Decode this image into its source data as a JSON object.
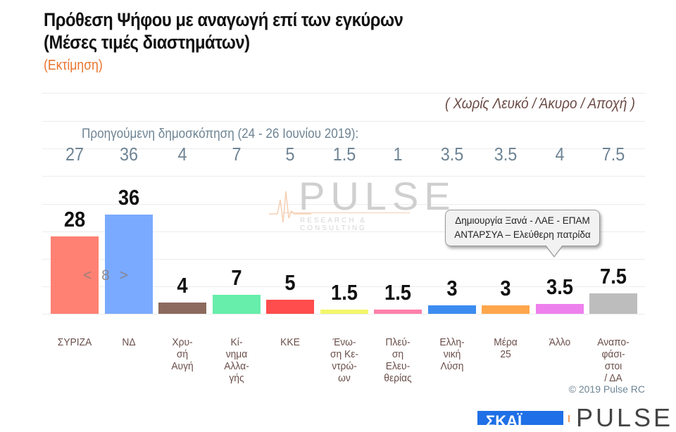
{
  "header": {
    "title_line1": "Πρόθεση Ψήφου με αναγωγή επί των εγκύρων",
    "title_line2": "(Μέσες τιμές διαστημάτων)",
    "subtitle": "(Εκτίμηση)"
  },
  "note": "( Χωρίς Λευκό / Άκυρο / Αποχή )",
  "previous": {
    "label": "Προηγούμενη δημοσκόπηση (24 - 26 Ιουνίου 2019):",
    "values": [
      "27",
      "36",
      "4",
      "7",
      "5",
      "1.5",
      "1",
      "3.5",
      "3.5",
      "4",
      "7.5"
    ]
  },
  "watermark": {
    "brand": "PULSE",
    "tagline": "RESEARCH & CONSULTING"
  },
  "callout": {
    "line1": "Δημιουργία Ξανά -  ΛΑΕ - ΕΠΑΜ",
    "line2": "ΑΝΤΑΡΣΥΑ – Ελεύθερη πατρίδα"
  },
  "pager": "< 8 >",
  "copyright": "© 2019 Pulse RC",
  "footer": {
    "logo1": "ΣΚΑΪ",
    "logo2": "PULSE"
  },
  "bars": [
    {
      "label": "ΣΥΡΙΖΑ",
      "value": "28",
      "color": "#ff8173"
    },
    {
      "label": "ΝΔ",
      "value": "36",
      "color": "#7aaaff"
    },
    {
      "label": "Χρυ-\nσή\nΑυγή",
      "value": "4",
      "color": "#8c6a5e"
    },
    {
      "label": "Κί-\nνημα\nΑλλα-\nγής",
      "value": "7",
      "color": "#66eeaa"
    },
    {
      "label": "ΚΚΕ",
      "value": "5",
      "color": "#ff4c4c"
    },
    {
      "label": "Ένω-\nση Κε-\nντρώ-\nων",
      "value": "1.5",
      "color": "#f2f76a"
    },
    {
      "label": "Πλεύ-\nση\nΕλευ-\nθερίας",
      "value": "1.5",
      "color": "#ff80aa"
    },
    {
      "label": "Ελλη-\nνική\nΛύση",
      "value": "3",
      "color": "#3c8cf0"
    },
    {
      "label": "Μέρα\n25",
      "value": "3",
      "color": "#ffa64c"
    },
    {
      "label": "Άλλο",
      "value": "3.5",
      "color": "#ee80ee"
    },
    {
      "label": "Αναπο-\nφάσι-\nστοι\n/ ΔΑ",
      "value": "7.5",
      "color": "#bdbdbd"
    }
  ],
  "chart_data": {
    "type": "bar",
    "title": "Πρόθεση Ψήφου με αναγωγή επί των εγκύρων (Μέσες τιμές διαστημάτων)",
    "subtitle": "(Εκτίμηση)",
    "annotation": "( Χωρίς Λευκό / Άκυρο / Αποχή )",
    "categories": [
      "ΣΥΡΙΖΑ",
      "ΝΔ",
      "Χρυσή Αυγή",
      "Κίνημα Αλλαγής",
      "ΚΚΕ",
      "Ένωση Κεντρώων",
      "Πλεύση Ελευθερίας",
      "Ελληνική Λύση",
      "Μέρα 25",
      "Άλλο",
      "Αναποφάσιστοι / ΔΑ"
    ],
    "series": [
      {
        "name": "Εκτίμηση",
        "values": [
          28,
          36,
          4,
          7,
          5,
          1.5,
          1.5,
          3,
          3,
          3.5,
          7.5
        ]
      },
      {
        "name": "Προηγούμενη δημοσκόπηση (24 - 26 Ιουνίου 2019)",
        "values": [
          27,
          36,
          4,
          7,
          5,
          1.5,
          1,
          3.5,
          3.5,
          4,
          7.5
        ]
      }
    ],
    "colors": [
      "#ff8173",
      "#7aaaff",
      "#8c6a5e",
      "#66eeaa",
      "#ff4c4c",
      "#f2f76a",
      "#ff80aa",
      "#3c8cf0",
      "#ffa64c",
      "#ee80ee",
      "#bdbdbd"
    ],
    "callout": "Άλλο: Δημιουργία Ξανά - ΛΑΕ - ΕΠΑΜ ΑΝΤΑΡΣΥΑ – Ελεύθερη πατρίδα",
    "xlabel": "",
    "ylabel": "",
    "ylim": [
      0,
      80
    ],
    "grid": true,
    "legend": "none",
    "source": "© 2019 Pulse RC"
  }
}
